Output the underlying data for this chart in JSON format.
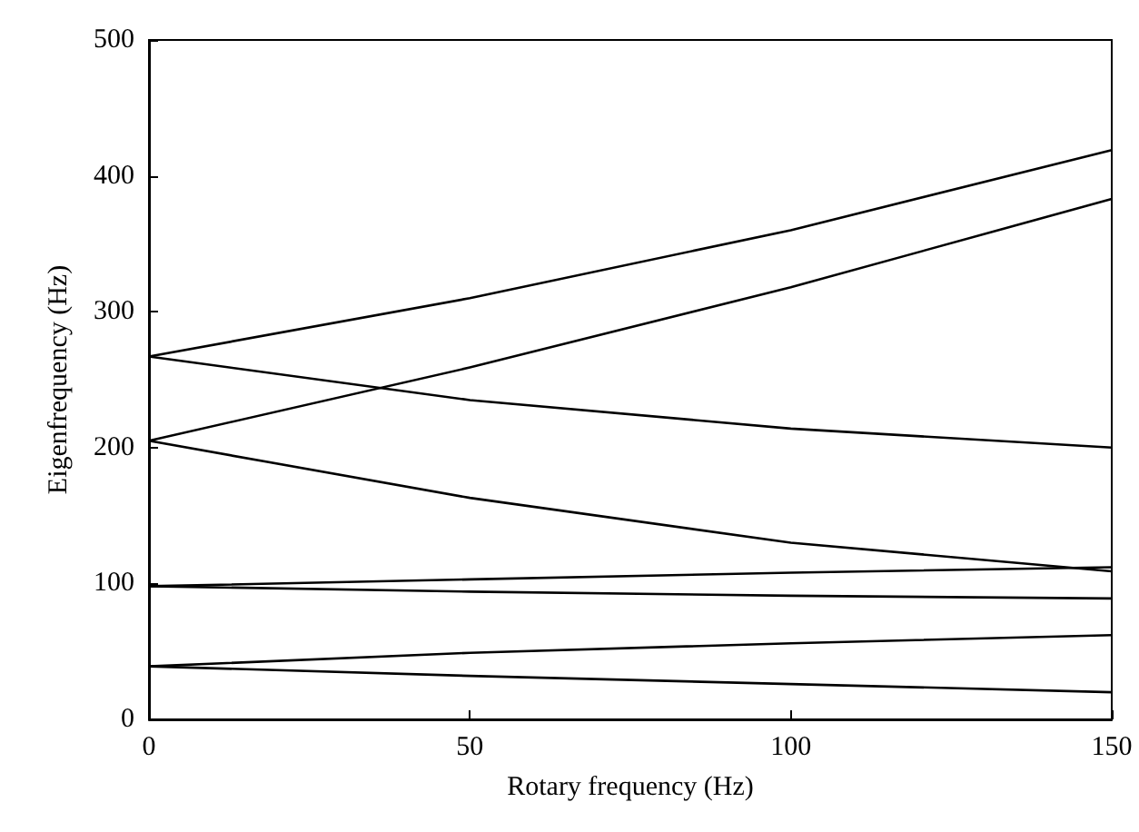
{
  "chart_data": {
    "type": "line",
    "xlabel": "Rotary frequency (Hz)",
    "ylabel": "Eigenfrequency (Hz)",
    "x": [
      0,
      50,
      100,
      150
    ],
    "series": [
      {
        "color": "#000000",
        "values": [
          267,
          310,
          360,
          419
        ]
      },
      {
        "color": "#000000",
        "values": [
          267,
          235,
          214,
          200
        ]
      },
      {
        "color": "#000000",
        "values": [
          205,
          259,
          318,
          383
        ]
      },
      {
        "color": "#000000",
        "values": [
          205,
          163,
          130,
          109
        ]
      },
      {
        "color": "#000000",
        "values": [
          98,
          103,
          108,
          112
        ]
      },
      {
        "color": "#000000",
        "values": [
          98,
          94,
          91,
          89
        ]
      },
      {
        "color": "#000000",
        "values": [
          39,
          49,
          56,
          62
        ]
      },
      {
        "color": "#000000",
        "values": [
          39,
          32,
          26,
          20
        ]
      }
    ],
    "xlim": [
      0,
      150
    ],
    "xticks": [
      0,
      50,
      100,
      150
    ],
    "ylim": [
      0,
      500
    ],
    "yticks": [
      0,
      100,
      200,
      300,
      400,
      500
    ],
    "grid": false,
    "marker": "none",
    "line_style": "solid"
  }
}
